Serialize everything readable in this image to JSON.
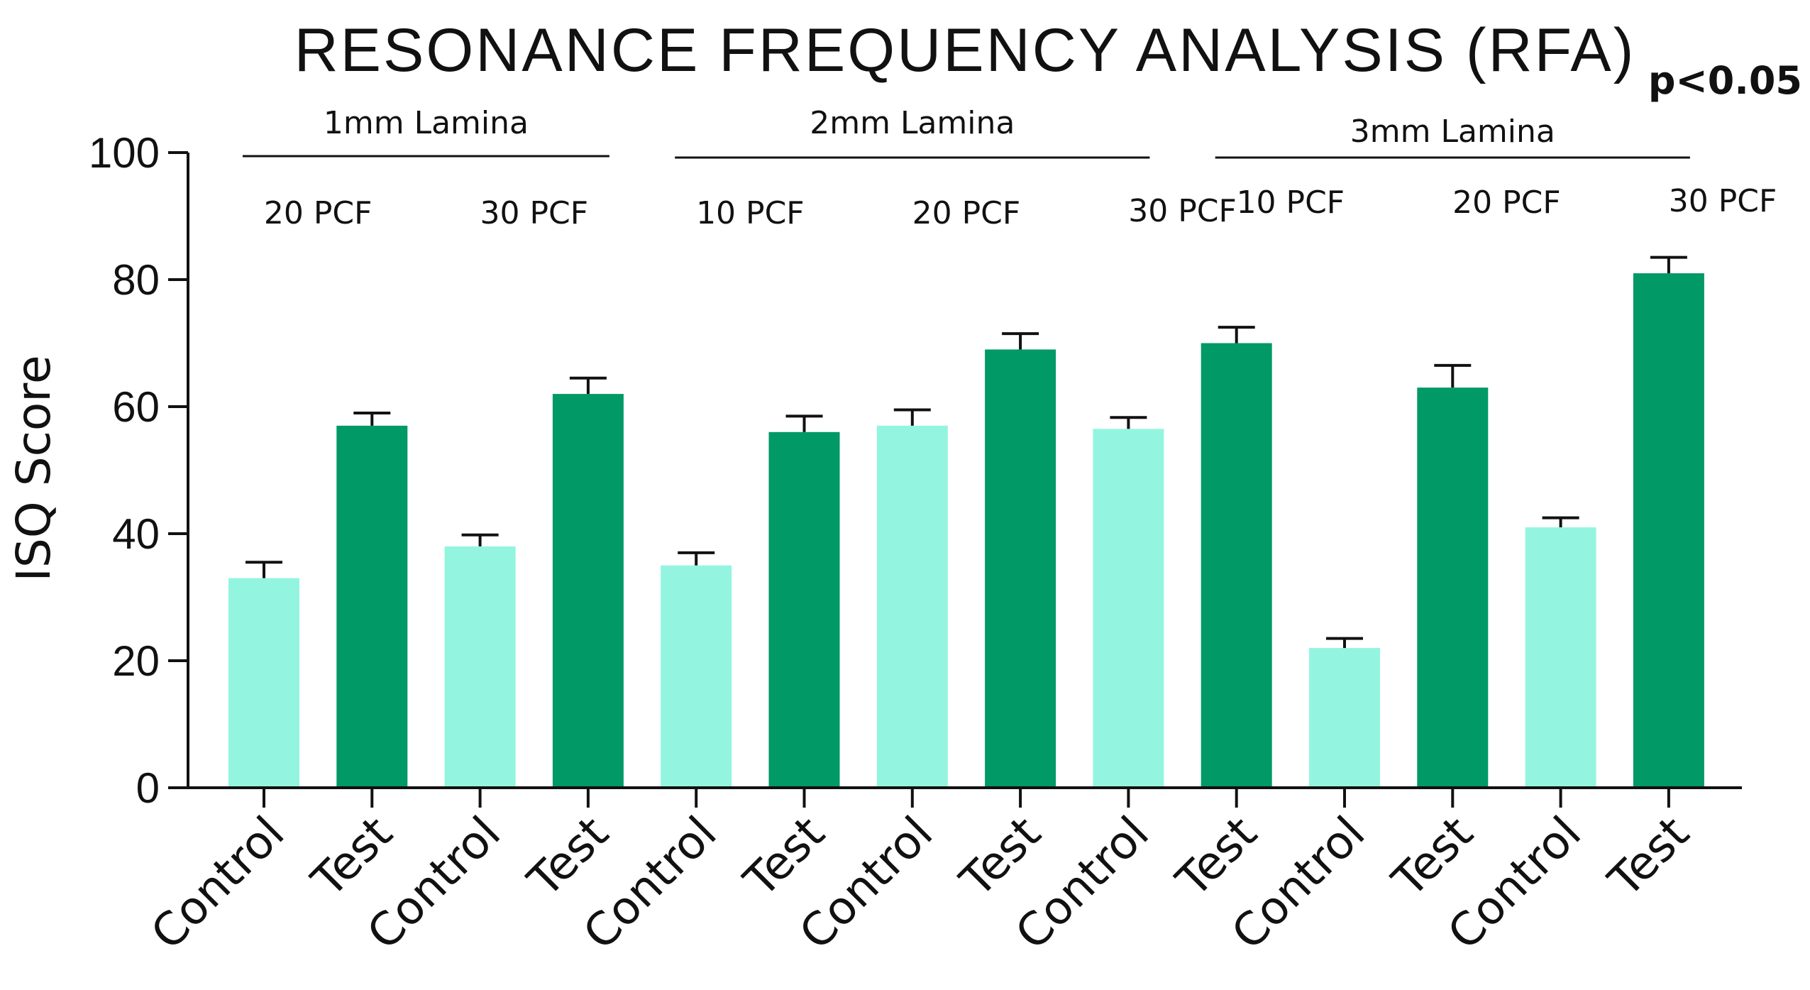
{
  "chart_data": {
    "type": "bar",
    "title": "RESONANCE FREQUENCY ANALYSIS (RFA)",
    "annotation": "p<0.05",
    "ylabel": "ISQ Score",
    "xlabel": "",
    "ylim": [
      0,
      100
    ],
    "yticks": [
      0,
      20,
      40,
      60,
      80,
      100
    ],
    "grid": false,
    "legend": "none",
    "categories": [
      "Control",
      "Test",
      "Control",
      "Test",
      "Control",
      "Test",
      "Control",
      "Test",
      "Control",
      "Test",
      "Control",
      "Test",
      "Control",
      "Test"
    ],
    "values": [
      33,
      57,
      38,
      62,
      35,
      56,
      57,
      69,
      56.5,
      70,
      22,
      63,
      41,
      81
    ],
    "errors": [
      2.5,
      2,
      1.8,
      2.5,
      2,
      2.5,
      2.5,
      2.5,
      1.8,
      2.5,
      1.5,
      3.5,
      1.5,
      2.5
    ],
    "kinds": [
      "control",
      "test",
      "control",
      "test",
      "control",
      "test",
      "control",
      "test",
      "control",
      "test",
      "control",
      "test",
      "control",
      "test"
    ],
    "colors": {
      "control": "#93f5df",
      "test": "#019966",
      "axis": "#111111"
    },
    "groups": [
      {
        "label": "1mm Lamina",
        "start_bar": 0,
        "end_bar": 3
      },
      {
        "label": "2mm Lamina",
        "start_bar": 4,
        "end_bar": 8
      },
      {
        "label": "3mm Lamina",
        "start_bar": 9,
        "end_bar": 13
      }
    ],
    "densities": [
      {
        "label": "20 PCF",
        "start_bar": 0,
        "end_bar": 1
      },
      {
        "label": "30 PCF",
        "start_bar": 2,
        "end_bar": 3
      },
      {
        "label": "10 PCF",
        "start_bar": 4,
        "end_bar": 5
      },
      {
        "label": "20 PCF",
        "start_bar": 6,
        "end_bar": 7
      },
      {
        "label": "30 PCF",
        "start_bar": 8,
        "end_bar": 9
      },
      {
        "label": "10 PCF",
        "start_bar": 9,
        "end_bar": 10
      },
      {
        "label": "20 PCF",
        "start_bar": 11,
        "end_bar": 12
      },
      {
        "label": "30 PCF",
        "start_bar": 13,
        "end_bar": 14
      }
    ]
  }
}
